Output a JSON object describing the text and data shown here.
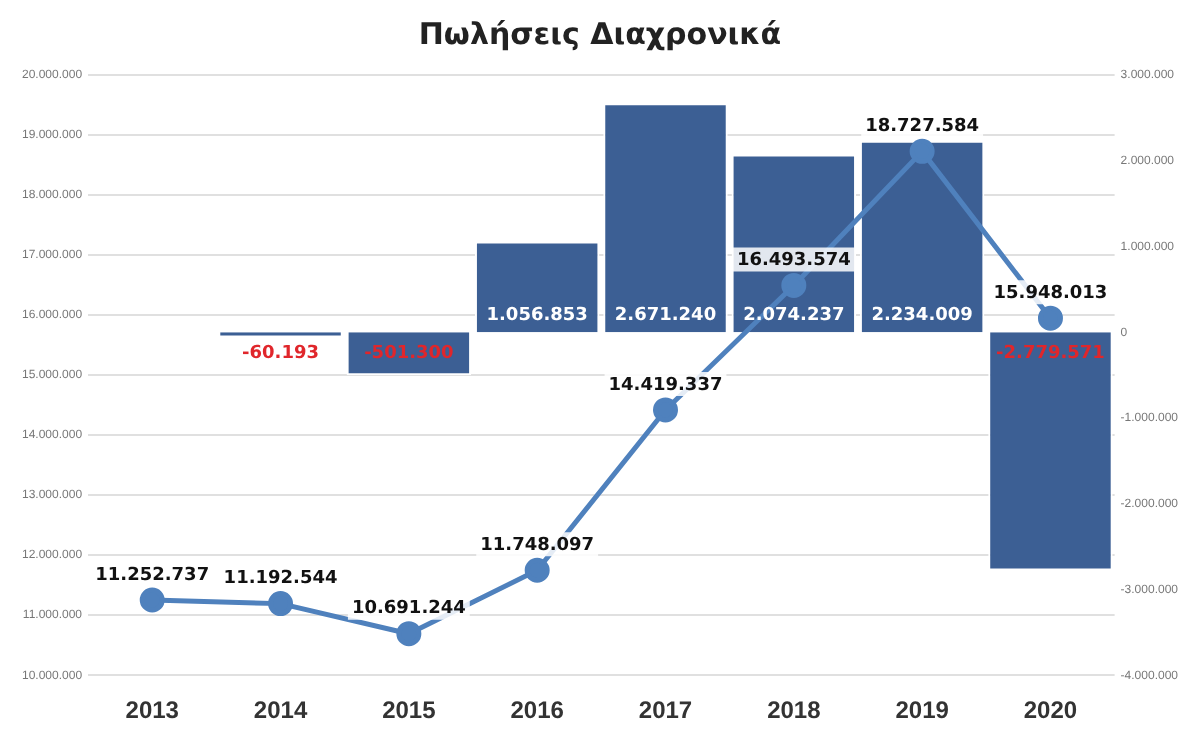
{
  "chart_data": {
    "type": "bar",
    "title": "Πωλήσεις Διαχρονικά",
    "categories": [
      "2013",
      "2014",
      "2015",
      "2016",
      "2017",
      "2018",
      "2019",
      "2020"
    ],
    "series": [
      {
        "axis": "y2",
        "color": "#3c5f94",
        "values": [
          null,
          -60193,
          -501300,
          1056853,
          2671240,
          2074237,
          2234009,
          -2779571
        ],
        "value_labels": [
          null,
          "-60.193",
          "-501.300",
          "1.056.853",
          "2.671.240",
          "2.074.237",
          "2.234.009",
          "-2.779.571"
        ]
      },
      {
        "type": "line",
        "axis": "y",
        "color": "#4f81bd",
        "marker": "circle",
        "values": [
          11252737,
          11192544,
          10691244,
          11748097,
          14419337,
          16493574,
          18727584,
          15948013
        ],
        "value_labels": [
          "11.252.737",
          "11.192.544",
          "10.691.244",
          "11.748.097",
          "14.419.337",
          "16.493.574",
          "18.727.584",
          "15.948.013"
        ]
      }
    ],
    "ylim": [
      10000000,
      20000000
    ],
    "yticks": [
      {
        "value": 10000000,
        "label": "10.000.000"
      },
      {
        "value": 11000000,
        "label": "11.000.000"
      },
      {
        "value": 12000000,
        "label": "12.000.000"
      },
      {
        "value": 13000000,
        "label": "13.000.000"
      },
      {
        "value": 14000000,
        "label": "14.000.000"
      },
      {
        "value": 15000000,
        "label": "15.000.000"
      },
      {
        "value": 16000000,
        "label": "16.000.000"
      },
      {
        "value": 17000000,
        "label": "17.000.000"
      },
      {
        "value": 18000000,
        "label": "18.000.000"
      },
      {
        "value": 19000000,
        "label": "19.000.000"
      },
      {
        "value": 20000000,
        "label": "20.000.000"
      }
    ],
    "y2lim": [
      -4000000,
      3000000
    ],
    "y2ticks": [
      {
        "value": -4000000,
        "label": "-4.000.000"
      },
      {
        "value": -3000000,
        "label": "-3.000.000"
      },
      {
        "value": -2000000,
        "label": "-2.000.000"
      },
      {
        "value": -1000000,
        "label": "-1.000.000"
      },
      0,
      {
        "value": 1000000,
        "label": "1.000.000"
      },
      {
        "value": 2000000,
        "label": "2.000.000"
      },
      {
        "value": 3000000,
        "label": "3.000.000"
      }
    ],
    "grid": "y",
    "legend": false
  }
}
